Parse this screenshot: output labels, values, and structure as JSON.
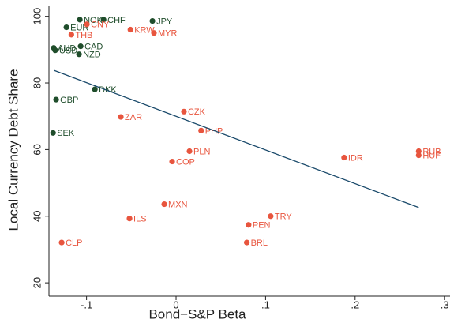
{
  "chart_data": {
    "type": "scatter",
    "xlabel": "Bond−S&P Beta",
    "ylabel": "Local Currency Debt Share",
    "xlim": [
      -0.142,
      0.306
    ],
    "ylim": [
      16,
      103
    ],
    "xticks": [
      {
        "value": -0.1,
        "label": "-.1"
      },
      0,
      {
        "value": 0.1,
        "label": ".1"
      },
      {
        "value": 0.2,
        "label": ".2"
      },
      {
        "value": 0.3,
        "label": ".3"
      }
    ],
    "yticks": [
      20,
      40,
      60,
      80,
      100
    ],
    "series": [
      {
        "color": "#1f4d2b",
        "labels": [
          "NOK",
          "CHF",
          "JPY",
          "EUR",
          "AUD",
          "USD",
          "CAD",
          "NZD",
          "DKK",
          "GBP",
          "SEK"
        ],
        "x": [
          -0.1075,
          -0.081,
          -0.0264,
          -0.1225,
          -0.1366,
          -0.135,
          -0.1066,
          -0.1084,
          -0.0907,
          -0.134,
          -0.1374
        ],
        "values": [
          99.0,
          99.0,
          98.6,
          96.7,
          90.5,
          89.8,
          91.0,
          88.6,
          78.1,
          75.0,
          65.0
        ]
      },
      {
        "color": "#e8553e",
        "labels": [
          "CNY",
          "THB",
          "KRW",
          "MYR",
          "CZK",
          "ZAR",
          "PHP",
          "PLN",
          "COP",
          "IDR",
          "RUB",
          "HUF",
          "MXN",
          "TRY",
          "ILS",
          "PEN",
          "BRL",
          "CLP"
        ],
        "x": [
          -0.0996,
          -0.117,
          -0.051,
          -0.0247,
          0.0088,
          -0.0617,
          0.028,
          0.015,
          -0.0044,
          0.1877,
          0.271,
          0.271,
          -0.0132,
          0.1057,
          -0.052,
          0.081,
          0.079,
          -0.1278
        ],
        "values": [
          97.6,
          94.5,
          96.0,
          95.0,
          71.4,
          69.8,
          65.7,
          59.5,
          56.4,
          57.6,
          59.5,
          58.3,
          43.6,
          40.0,
          39.3,
          37.4,
          32.1,
          32.1
        ]
      }
    ],
    "fit": {
      "color": "#1a4a6b",
      "x": [
        -0.1366,
        0.271
      ],
      "values": [
        83.8,
        42.6
      ]
    }
  }
}
